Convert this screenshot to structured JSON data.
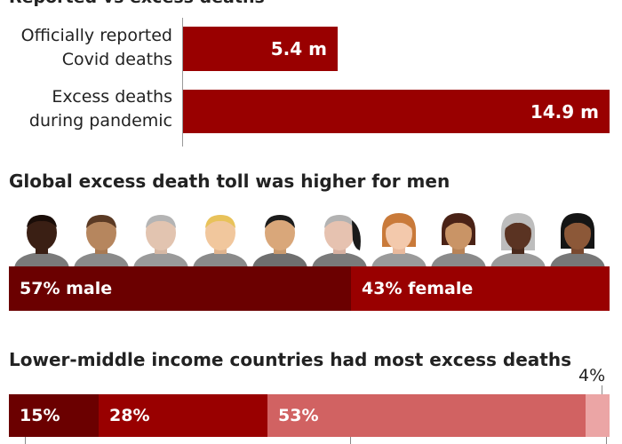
{
  "chart_data": [
    {
      "type": "bar",
      "orientation": "horizontal",
      "categories": [
        "Officially reported Covid deaths",
        "Excess deaths during pandemic"
      ],
      "labels": [
        [
          "Officially reported",
          "Covid deaths"
        ],
        [
          "Excess deaths",
          "during pandemic"
        ]
      ],
      "values": [
        5.4,
        14.9
      ],
      "value_labels": [
        "5.4 m",
        "14.9 m"
      ],
      "unit": "m",
      "xlim": [
        0,
        14.9
      ],
      "colors": {
        "bar": "#990000"
      }
    },
    {
      "type": "bar",
      "stacked": true,
      "title": "Global excess death toll was higher for men",
      "series": [
        {
          "name": "male",
          "value": 57,
          "label": "57% male",
          "color": "#6b0000"
        },
        {
          "name": "female",
          "value": 43,
          "label": "43% female",
          "color": "#990000"
        }
      ],
      "icons": [
        "person-icon-male-1",
        "person-icon-male-2",
        "person-icon-male-3",
        "person-icon-male-4",
        "person-icon-male-5",
        "person-icon-male-6",
        "person-icon-female-1",
        "person-icon-female-2",
        "person-icon-female-3",
        "person-icon-female-4"
      ]
    },
    {
      "type": "bar",
      "stacked": true,
      "title": "Lower-middle income countries had most excess deaths",
      "series": [
        {
          "value": 15,
          "label": "15%",
          "color": "#6b0000"
        },
        {
          "value": 28,
          "label": "28%",
          "color": "#990000"
        },
        {
          "value": 53,
          "label": "53%",
          "color": "#d16262"
        },
        {
          "value": 4,
          "label": "4%",
          "color": "#eba5a5"
        }
      ]
    }
  ],
  "top_title_partial": "Reported vs excess deaths"
}
